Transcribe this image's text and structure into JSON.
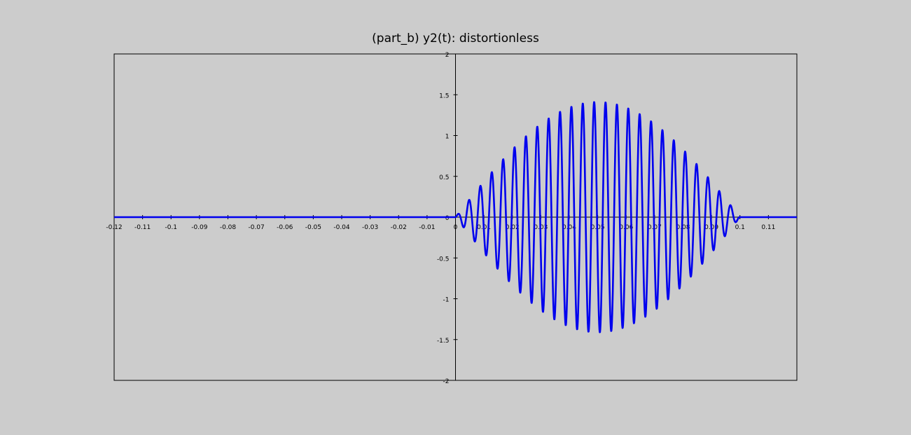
{
  "chart_data": {
    "type": "line",
    "title": "(part_b) y2(t): distortionless",
    "xlabel": "",
    "ylabel": "",
    "xlim": [
      -0.12,
      0.12
    ],
    "ylim": [
      -2,
      2
    ],
    "xticks": [
      -0.12,
      -0.11,
      -0.1,
      -0.09,
      -0.08,
      -0.07,
      -0.06,
      -0.05,
      -0.04,
      -0.03,
      -0.02,
      -0.01,
      0,
      0.01,
      0.02,
      0.03,
      0.04,
      0.05,
      0.06,
      0.07,
      0.08,
      0.09,
      0.1,
      0.11
    ],
    "xtick_labels": [
      "-0.12",
      "-0.11",
      "-0.1",
      "-0.09",
      "-0.08",
      "-0.07",
      "-0.06",
      "-0.05",
      "-0.04",
      "-0.03",
      "-0.02",
      "-0.01",
      "0",
      "0.01",
      "0.02",
      "0.03",
      "0.04",
      "0.05",
      "0.06",
      "0.07",
      "0.08",
      "0.09",
      "0.1",
      "0.11"
    ],
    "yticks": [
      -2,
      -1.5,
      -1,
      -0.5,
      0,
      0.5,
      1,
      1.5,
      2
    ],
    "ytick_labels": [
      "-2",
      "-1.5",
      "-1",
      "-0.5",
      "0",
      "0.5",
      "1",
      "1.5",
      "2"
    ],
    "grid": false,
    "series": [
      {
        "color": "#0000ee",
        "description_of_signal": "y = 0 outside [0, 0.1]; inside, y = 1.414 * sin(pi*t/0.1) * sin(2*pi*250*t + 0.4)",
        "signal": {
          "support": [
            0,
            0.1
          ],
          "envelope_peak": 1.414,
          "carrier_frequency": 250,
          "carrier_phase": 0.4
        },
        "sample_step": 0.0001
      }
    ]
  },
  "colors": {
    "background": "#cccccc",
    "plot_background": "#cccccc",
    "line": "#0000ee",
    "axes": "#000000"
  }
}
